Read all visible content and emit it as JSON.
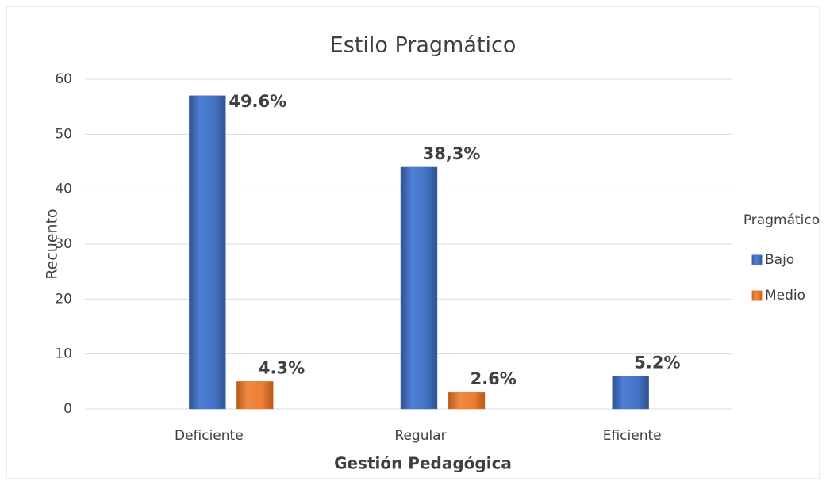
{
  "chart_data": {
    "type": "bar",
    "title": "Estilo Pragmático",
    "x_label": "Gestión Pedagógica",
    "y_label": "Recuento",
    "categories": [
      "Deficiente",
      "Regular",
      "Eficiente"
    ],
    "series": [
      {
        "name": "Bajo",
        "color": "#4472c4",
        "values": [
          57,
          44,
          6
        ],
        "annotations": [
          "49.6%",
          "38,3%",
          "5.2%"
        ]
      },
      {
        "name": "Medio",
        "color": "#ed7d31",
        "values": [
          5,
          3,
          null
        ],
        "annotations": [
          "4.3%",
          "2.6%",
          null
        ]
      }
    ],
    "legend_title": "Pragmático",
    "legend_position": "right",
    "ylim": [
      0,
      60
    ],
    "yticks": [
      0,
      10,
      20,
      30,
      40,
      50,
      60
    ],
    "grid": true
  }
}
